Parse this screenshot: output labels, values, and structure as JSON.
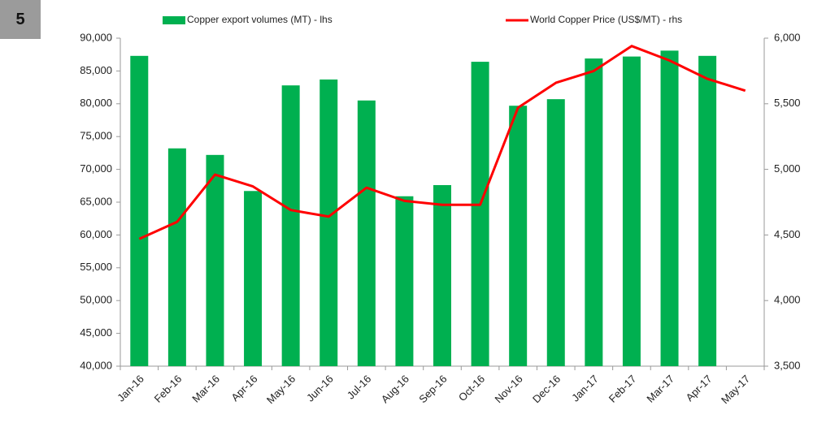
{
  "badge": "5",
  "chart_data": {
    "type": "bar",
    "categories": [
      "Jan-16",
      "Feb-16",
      "Mar-16",
      "Apr-16",
      "May-16",
      "Jun-16",
      "Jul-16",
      "Aug-16",
      "Sep-16",
      "Oct-16",
      "Nov-16",
      "Dec-16",
      "Jan-17",
      "Feb-17",
      "Mar-17",
      "Apr-17",
      "May-17"
    ],
    "series": [
      {
        "name": "Copper export volumes (MT) - lhs",
        "color": "#00b050",
        "type": "bar",
        "values": [
          87300,
          73200,
          72200,
          66700,
          82800,
          83700,
          80500,
          65900,
          67600,
          86400,
          79700,
          80700,
          86900,
          87200,
          88100,
          87300,
          null
        ]
      },
      {
        "name": "World Copper Price (US$/MT) - rhs",
        "color": "#ff0000",
        "type": "line",
        "axis": "y2",
        "values": [
          4470,
          4600,
          4960,
          4870,
          4690,
          4640,
          4860,
          4760,
          4730,
          4730,
          5470,
          5660,
          5750,
          5940,
          5830,
          5690,
          5600
        ]
      }
    ],
    "ylim": [
      40000,
      90000
    ],
    "yticks": [
      {
        "value": 40000,
        "label": "40,000"
      },
      {
        "value": 45000,
        "label": "45,000"
      },
      {
        "value": 50000,
        "label": "50,000"
      },
      {
        "value": 55000,
        "label": "55,000"
      },
      {
        "value": 60000,
        "label": "60,000"
      },
      {
        "value": 65000,
        "label": "65,000"
      },
      {
        "value": 70000,
        "label": "70,000"
      },
      {
        "value": 75000,
        "label": "75,000"
      },
      {
        "value": 80000,
        "label": "80,000"
      },
      {
        "value": 85000,
        "label": "85,000"
      },
      {
        "value": 90000,
        "label": "90,000"
      }
    ],
    "y2lim": [
      3500,
      6000
    ],
    "y2ticks": [
      {
        "value": 3500,
        "label": "3,500"
      },
      {
        "value": 4000,
        "label": "4,000"
      },
      {
        "value": 4500,
        "label": "4,500"
      },
      {
        "value": 5000,
        "label": "5,000"
      },
      {
        "value": 5500,
        "label": "5,500"
      },
      {
        "value": 6000,
        "label": "6,000"
      }
    ],
    "legend": "top",
    "grid": false
  }
}
